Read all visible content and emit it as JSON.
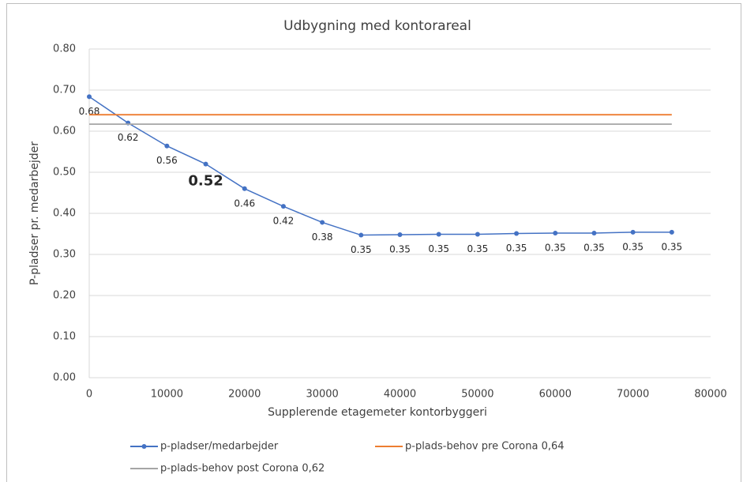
{
  "chart_data": {
    "type": "line",
    "title": "Udbygning med kontorareal",
    "xlabel": "Supplerende etagemeter kontorbyggeri",
    "ylabel": "P-pladser pr. medarbejder",
    "x": [
      0,
      5000,
      10000,
      15000,
      20000,
      25000,
      30000,
      35000,
      40000,
      45000,
      50000,
      55000,
      60000,
      65000,
      70000,
      75000
    ],
    "series": [
      {
        "name": "p-pladser/medarbejder",
        "color": "#4472c4",
        "marker": true,
        "values": [
          0.684,
          0.62,
          0.564,
          0.52,
          0.46,
          0.417,
          0.378,
          0.347,
          0.348,
          0.349,
          0.349,
          0.351,
          0.352,
          0.352,
          0.354,
          0.354
        ],
        "value_labels": [
          "0.68",
          "0.62",
          "0.56",
          "0.52",
          "0.46",
          "0.42",
          "0.38",
          "0.35",
          "0.35",
          "0.35",
          "0.35",
          "0.35",
          "0.35",
          "0.35",
          "0.35",
          "0.35"
        ]
      },
      {
        "name": "p-plads-behov pre Corona 0,64",
        "color": "#ed7d31",
        "marker": false,
        "values": [
          0.64,
          0.64,
          0.64,
          0.64,
          0.64,
          0.64,
          0.64,
          0.64,
          0.64,
          0.64,
          0.64,
          0.64,
          0.64,
          0.64,
          0.64,
          0.64
        ]
      },
      {
        "name": "p-plads-behov post Corona 0,62",
        "color": "#a5a5a5",
        "marker": false,
        "values": [
          0.617,
          0.617,
          0.617,
          0.617,
          0.617,
          0.617,
          0.617,
          0.617,
          0.617,
          0.617,
          0.617,
          0.617,
          0.617,
          0.617,
          0.617,
          0.617
        ]
      }
    ],
    "xlim": [
      0,
      80000
    ],
    "xticks": [
      0,
      10000,
      20000,
      30000,
      40000,
      50000,
      60000,
      70000,
      80000
    ],
    "ylim": [
      0,
      0.8
    ],
    "yticks": [
      {
        "value": 0,
        "label": "0.00"
      },
      {
        "value": 0.1,
        "label": "0.10"
      },
      {
        "value": 0.2,
        "label": "0.20"
      },
      {
        "value": 0.3,
        "label": "0.30"
      },
      {
        "value": 0.4,
        "label": "0.40"
      },
      {
        "value": 0.5,
        "label": "0.50"
      },
      {
        "value": 0.6,
        "label": "0.60"
      },
      {
        "value": 0.7,
        "label": "0.70"
      },
      {
        "value": 0.8,
        "label": "0.80"
      }
    ],
    "grid": true,
    "legend": "bottom"
  }
}
